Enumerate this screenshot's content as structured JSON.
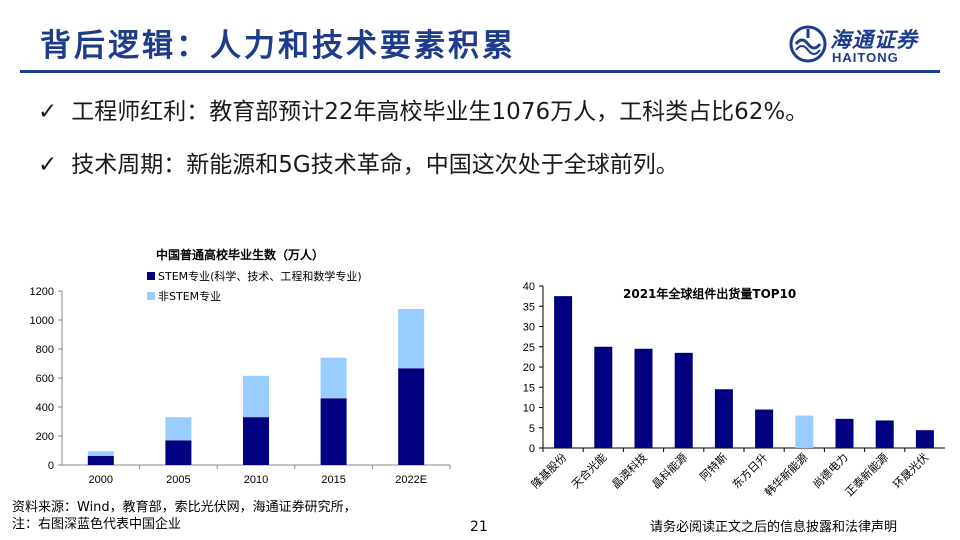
{
  "slide": {
    "title": "背后逻辑：人力和技术要素积累",
    "logo_cn": "海通证券",
    "logo_en": "HAITONG",
    "page_number": "21",
    "disclaimer": "请务必阅读正文之后的信息披露和法律声明"
  },
  "bullets": [
    {
      "check": "✓",
      "text": "工程师红利：教育部预计22年高校毕业生1076万人，工科类占比62%。"
    },
    {
      "check": "✓",
      "text": "技术周期：新能源和5G技术革命，中国这次处于全球前列。"
    }
  ],
  "source": {
    "line1": "资料来源：Wind，教育部，索比光伏网，海通证券研究所，",
    "line2": "注：右图深蓝色代表中国企业"
  },
  "colors": {
    "title_blue": "#1f3b8c",
    "stem": "#000080",
    "non_stem": "#99ccff",
    "china_bar": "#000080",
    "foreign_bar": "#99ccff"
  },
  "chart_data": [
    {
      "type": "bar",
      "stacked": true,
      "title": "中国普通高校毕业生数（万人）",
      "categories": [
        "2000",
        "2005",
        "2010",
        "2015",
        "2022E"
      ],
      "series": [
        {
          "name": "STEM专业(科学、技术、工程和数学专业)",
          "values": [
            63,
            170,
            330,
            460,
            667
          ]
        },
        {
          "name": "非STEM专业",
          "values": [
            32,
            160,
            285,
            280,
            409
          ]
        }
      ],
      "ylim": [
        0,
        1200
      ],
      "yticks": [
        "0",
        "200",
        "400",
        "600",
        "800",
        "1000",
        "1200"
      ],
      "grid": false,
      "legend_position": "top-left"
    },
    {
      "type": "bar",
      "title": "2021年全球组件出货量TOP10",
      "categories": [
        "隆基股份",
        "天合光能",
        "晶澳科技",
        "晶科能源",
        "阿特斯",
        "东方日升",
        "韩华新能源",
        "尚德电力",
        "正泰新能源",
        "环晟光伏"
      ],
      "values": [
        37.5,
        25,
        24.5,
        23.5,
        14.5,
        9.5,
        8,
        7.2,
        6.8,
        4.4
      ],
      "china": [
        true,
        true,
        true,
        true,
        true,
        true,
        false,
        true,
        true,
        true
      ],
      "ylim": [
        0,
        40
      ],
      "yticks": [
        "0",
        "5",
        "10",
        "15",
        "20",
        "25",
        "30",
        "35",
        "40"
      ],
      "grid": false
    }
  ]
}
